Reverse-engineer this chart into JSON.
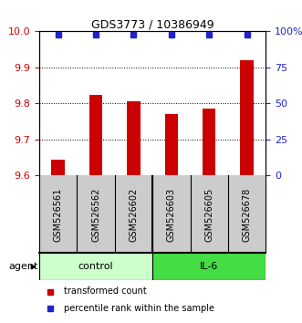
{
  "title": "GDS3773 / 10386949",
  "samples": [
    "GSM526561",
    "GSM526562",
    "GSM526602",
    "GSM526603",
    "GSM526605",
    "GSM526678"
  ],
  "bar_values": [
    9.645,
    9.825,
    9.805,
    9.77,
    9.785,
    9.92
  ],
  "percentile_values": [
    98,
    98,
    98,
    98,
    98,
    98
  ],
  "ylim_left": [
    9.6,
    10.0
  ],
  "ylim_right": [
    0,
    100
  ],
  "yticks_left": [
    9.6,
    9.7,
    9.8,
    9.9,
    10.0
  ],
  "yticks_right": [
    0,
    25,
    50,
    75,
    100
  ],
  "bar_color": "#cc0000",
  "dot_color": "#2222cc",
  "control_color": "#ccffcc",
  "il6_color": "#44dd44",
  "sample_bg_color": "#cccccc",
  "control_label": "control",
  "il6_label": "IL-6",
  "agent_label": "agent",
  "legend_bar_label": "transformed count",
  "legend_dot_label": "percentile rank within the sample",
  "tick_color_left": "#cc0000",
  "tick_color_right": "#2222cc",
  "bar_width": 0.35
}
